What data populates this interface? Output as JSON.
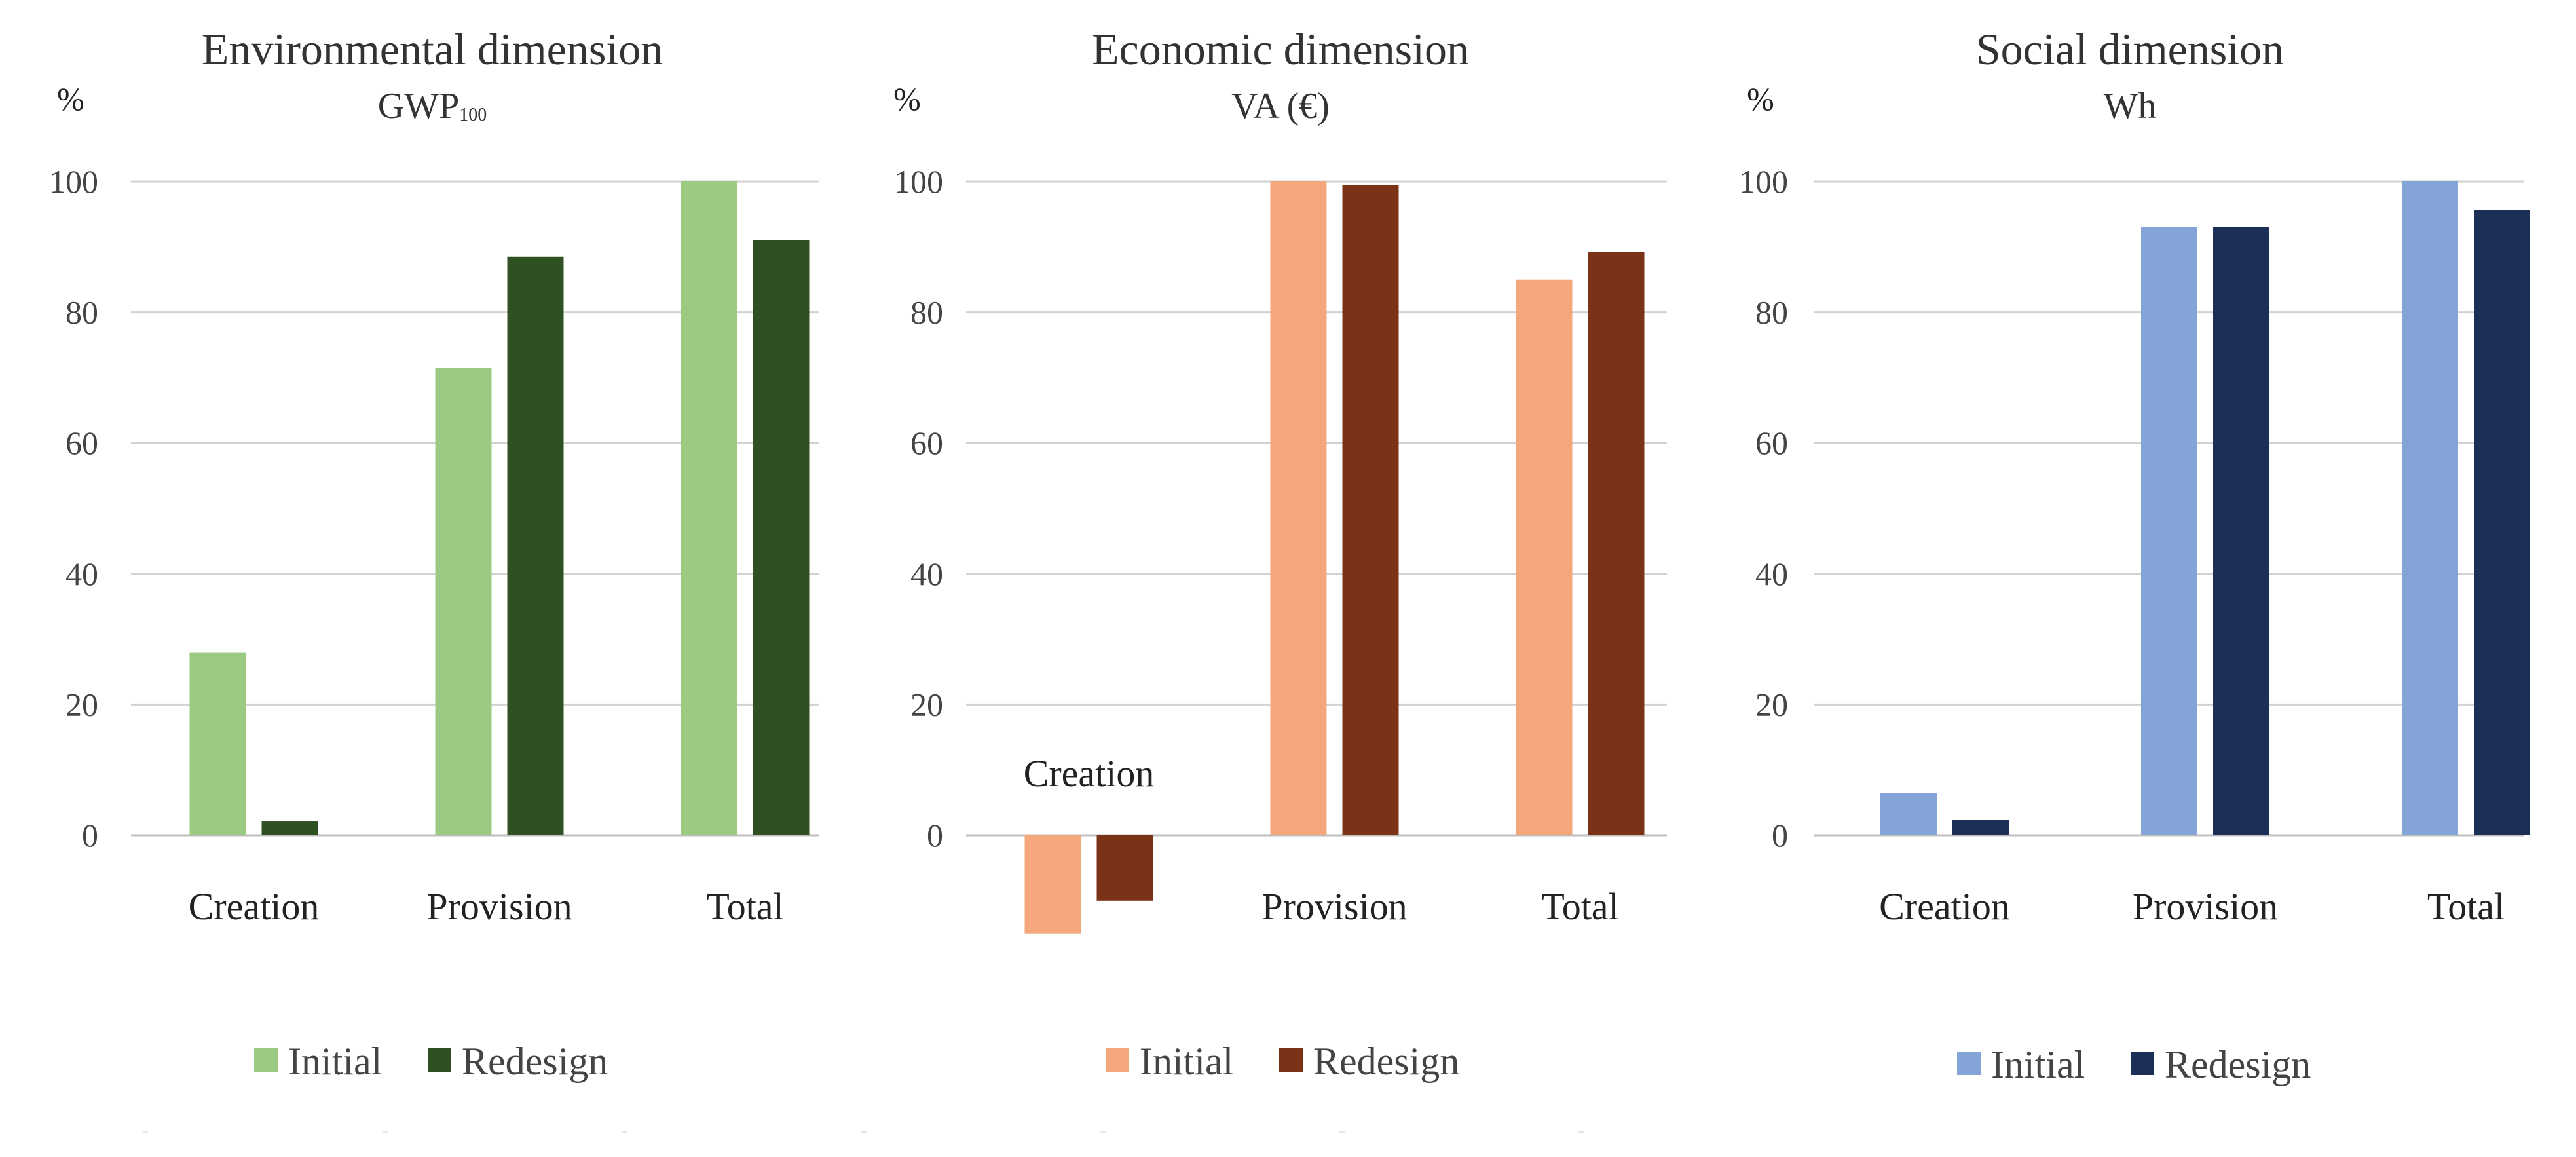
{
  "chart_data": [
    {
      "type": "bar",
      "title": "Environmental dimension",
      "subtitle": "GWP",
      "subtitle_sub": "100",
      "ylabel": "%",
      "categories": [
        "Creation",
        "Provision",
        "Total"
      ],
      "ylim": [
        -20,
        100
      ],
      "yticks": [
        0,
        20,
        40,
        60,
        80,
        100
      ],
      "grid": true,
      "legend_position": "bottom",
      "series": [
        {
          "name": "Initial",
          "color": "#9bcb83",
          "values": [
            28,
            71.5,
            100
          ]
        },
        {
          "name": "Redesign",
          "color": "#2f5122",
          "values": [
            2.2,
            88.5,
            91
          ]
        }
      ]
    },
    {
      "type": "bar",
      "title": "Economic dimension",
      "subtitle": "VA (€)",
      "subtitle_sub": "",
      "ylabel": "%",
      "categories": [
        "Creation",
        "Provision",
        "Total"
      ],
      "ylim": [
        -20,
        100
      ],
      "yticks": [
        0,
        20,
        40,
        60,
        80,
        100
      ],
      "grid": true,
      "legend_position": "bottom",
      "series": [
        {
          "name": "Initial",
          "color": "#f3a77a",
          "values": [
            -15,
            100,
            85
          ]
        },
        {
          "name": "Redesign",
          "color": "#7a3316",
          "values": [
            -10,
            99.5,
            89.2
          ]
        }
      ]
    },
    {
      "type": "bar",
      "title": "Social dimension",
      "subtitle": "W",
      "subtitle_sub": "h",
      "ylabel": "%",
      "categories": [
        "Creation",
        "Provision",
        "Total"
      ],
      "ylim": [
        -20,
        100
      ],
      "yticks": [
        0,
        20,
        40,
        60,
        80,
        100
      ],
      "grid": true,
      "legend_position": "bottom",
      "series": [
        {
          "name": "Initial",
          "color": "#84a4d7",
          "values": [
            6.5,
            93,
            100
          ]
        },
        {
          "name": "Redesign",
          "color": "#1b2f57",
          "values": [
            2.4,
            93,
            95.6
          ]
        }
      ]
    }
  ]
}
